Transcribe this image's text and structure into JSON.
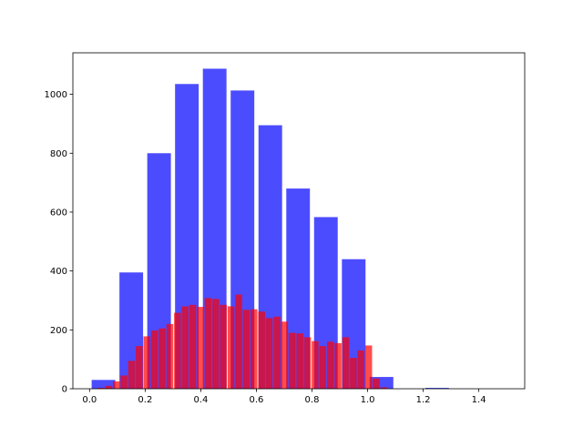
{
  "chart_data": {
    "type": "histogram",
    "xlim": [
      -0.06,
      1.565
    ],
    "ylim": [
      0,
      1141
    ],
    "xticks": [
      {
        "value": 0,
        "label": "0.0"
      },
      0.2,
      0.4,
      0.6,
      0.8,
      {
        "value": 1,
        "label": "1.0"
      },
      1.2,
      1.4
    ],
    "yticks": [
      0,
      200,
      400,
      600,
      800,
      1000
    ],
    "series": [
      {
        "color": "rgba(0,0,255,0.7)",
        "bins": [
          0,
          0.1,
          0.2,
          0.3,
          0.4,
          0.5,
          0.6,
          0.7,
          0.8,
          0.9,
          1,
          1.1,
          1.2,
          1.3,
          1.4,
          1.5
        ],
        "values": [
          30,
          395,
          800,
          1035,
          1087,
          1013,
          895,
          680,
          583,
          440,
          40,
          0,
          3,
          0,
          0
        ]
      },
      {
        "color": "rgba(255,0,0,0.7)",
        "bins": [
          0,
          0.0275,
          0.055,
          0.0825,
          0.11,
          0.1375,
          0.165,
          0.1925,
          0.22,
          0.2475,
          0.275,
          0.3025,
          0.33,
          0.3575,
          0.385,
          0.4125,
          0.44,
          0.4675,
          0.495,
          0.5225,
          0.55,
          0.5775,
          0.605,
          0.6325,
          0.66,
          0.6875,
          0.715,
          0.7425,
          0.77,
          0.7975,
          0.825,
          0.8525,
          0.88,
          0.9075,
          0.935,
          0.9625,
          0.99,
          1.0175,
          1.045,
          1.0725,
          1.1
        ],
        "values": [
          0,
          3,
          10,
          25,
          45,
          95,
          145,
          178,
          198,
          205,
          220,
          258,
          280,
          285,
          278,
          308,
          305,
          285,
          280,
          320,
          268,
          270,
          262,
          240,
          245,
          228,
          190,
          188,
          175,
          162,
          145,
          160,
          155,
          175,
          105,
          130,
          147,
          35,
          5,
          0
        ]
      }
    ]
  }
}
